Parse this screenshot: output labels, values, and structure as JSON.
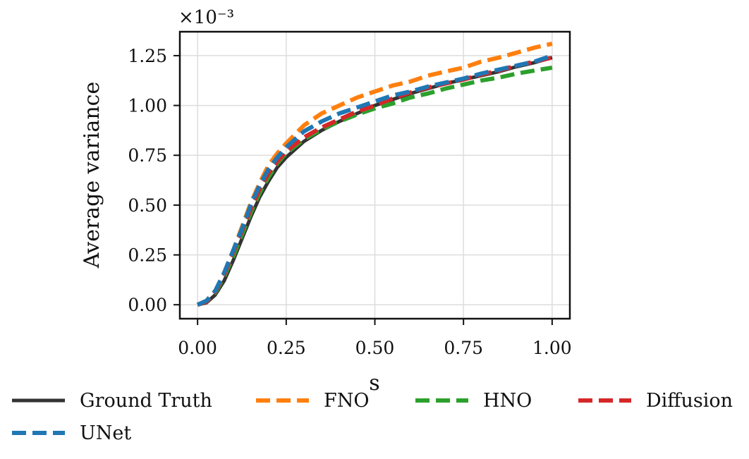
{
  "chart_data": {
    "type": "line",
    "title": "",
    "xlabel": "s",
    "ylabel": "Average variance",
    "y_scale_label": "×10⁻³",
    "xlim": [
      -0.05,
      1.05
    ],
    "ylim": [
      -0.07,
      1.37
    ],
    "x_ticks": [
      "0.00",
      "0.25",
      "0.50",
      "0.75",
      "1.00"
    ],
    "y_ticks": [
      "0.00",
      "0.25",
      "0.50",
      "0.75",
      "1.00",
      "1.25"
    ],
    "grid": true,
    "legend_position": "bottom",
    "x": [
      0.0,
      0.025,
      0.05,
      0.075,
      0.1,
      0.125,
      0.15,
      0.175,
      0.2,
      0.225,
      0.25,
      0.3,
      0.35,
      0.4,
      0.45,
      0.5,
      0.55,
      0.6,
      0.65,
      0.7,
      0.75,
      0.8,
      0.85,
      0.9,
      0.95,
      1.0
    ],
    "series": [
      {
        "name": "Ground Truth",
        "color": "#333333",
        "style": "solid",
        "values": [
          0.0,
          0.01,
          0.05,
          0.12,
          0.22,
          0.33,
          0.44,
          0.54,
          0.62,
          0.69,
          0.74,
          0.82,
          0.875,
          0.92,
          0.96,
          1.0,
          1.03,
          1.06,
          1.085,
          1.11,
          1.13,
          1.15,
          1.17,
          1.195,
          1.215,
          1.24
        ]
      },
      {
        "name": "FNO",
        "color": "#ff7f0e",
        "style": "dashed",
        "values": [
          0.0,
          0.02,
          0.07,
          0.16,
          0.27,
          0.39,
          0.51,
          0.61,
          0.7,
          0.76,
          0.81,
          0.9,
          0.96,
          1.0,
          1.04,
          1.07,
          1.1,
          1.12,
          1.15,
          1.17,
          1.19,
          1.22,
          1.24,
          1.265,
          1.29,
          1.31
        ]
      },
      {
        "name": "HNO",
        "color": "#2ca02c",
        "style": "dashed",
        "values": [
          0.0,
          0.015,
          0.06,
          0.14,
          0.24,
          0.35,
          0.46,
          0.56,
          0.64,
          0.71,
          0.76,
          0.83,
          0.88,
          0.92,
          0.955,
          0.985,
          1.01,
          1.04,
          1.06,
          1.085,
          1.105,
          1.125,
          1.14,
          1.16,
          1.175,
          1.19
        ]
      },
      {
        "name": "Diffusion",
        "color": "#d62728",
        "style": "dashed",
        "values": [
          0.0,
          0.015,
          0.065,
          0.15,
          0.26,
          0.37,
          0.48,
          0.58,
          0.66,
          0.72,
          0.77,
          0.84,
          0.89,
          0.93,
          0.97,
          1.0,
          1.035,
          1.065,
          1.09,
          1.11,
          1.13,
          1.155,
          1.175,
          1.2,
          1.22,
          1.24
        ]
      },
      {
        "name": "UNet",
        "color": "#1f77b4",
        "style": "dashed",
        "values": [
          0.0,
          0.02,
          0.07,
          0.16,
          0.27,
          0.38,
          0.5,
          0.6,
          0.68,
          0.74,
          0.79,
          0.87,
          0.92,
          0.96,
          0.99,
          1.02,
          1.05,
          1.07,
          1.095,
          1.115,
          1.135,
          1.16,
          1.18,
          1.2,
          1.22,
          1.25
        ]
      }
    ],
    "legend_order": [
      "Ground Truth",
      "FNO",
      "HNO",
      "Diffusion",
      "UNet"
    ]
  }
}
